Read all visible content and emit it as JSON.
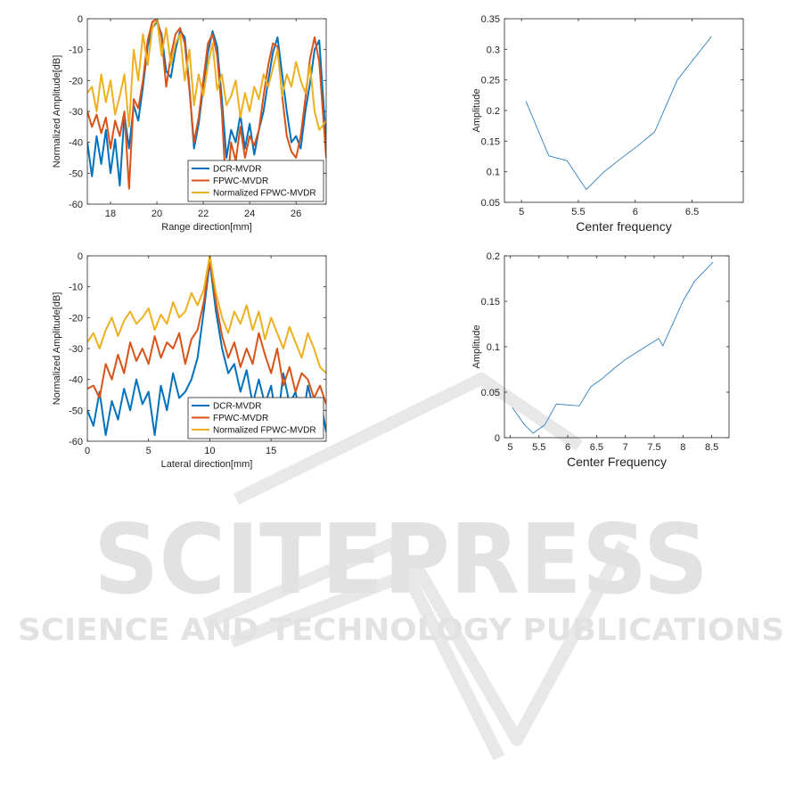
{
  "watermark": {
    "line1": "SCITEPRESS",
    "line2": "SCIENCE AND TECHNOLOGY PUBLICATIONS"
  },
  "colors": {
    "blue": "#0072BD",
    "red": "#D95319",
    "yellow": "#EDB120",
    "thin": "#2f7fc1"
  },
  "chart_data": [
    {
      "id": "range",
      "type": "line",
      "xlabel": "Range direction[mm]",
      "ylabel": "Normalized Amplitude[dB]",
      "xlim": [
        17,
        27.3
      ],
      "ylim": [
        -60,
        0
      ],
      "xticks": [
        18,
        20,
        22,
        24,
        26
      ],
      "yticks": [
        0,
        -10,
        -20,
        -30,
        -40,
        -50,
        -60
      ],
      "legend": "bottom-right",
      "series": [
        {
          "name": "DCR-MVDR",
          "color": "#0072BD",
          "x": [
            17.0,
            17.2,
            17.4,
            17.6,
            17.8,
            18.0,
            18.2,
            18.4,
            18.6,
            18.8,
            19.0,
            19.2,
            19.4,
            19.6,
            19.8,
            20.0,
            20.2,
            20.4,
            20.6,
            20.8,
            21.0,
            21.2,
            21.4,
            21.6,
            21.8,
            22.0,
            22.2,
            22.4,
            22.6,
            22.8,
            23.0,
            23.2,
            23.4,
            23.6,
            23.8,
            24.0,
            24.2,
            24.4,
            24.6,
            24.8,
            25.0,
            25.2,
            25.4,
            25.6,
            25.8,
            26.0,
            26.2,
            26.4,
            26.6,
            26.8,
            27.0,
            27.3
          ],
          "y": [
            -40,
            -51,
            -38,
            -47,
            -36,
            -50,
            -39,
            -54,
            -31,
            -42,
            -28,
            -33,
            -22,
            -9,
            -3,
            -1,
            -5,
            -17,
            -19,
            -10,
            -4,
            -6,
            -22,
            -42,
            -34,
            -22,
            -11,
            -4,
            -9,
            -26,
            -45,
            -36,
            -40,
            -31,
            -42,
            -34,
            -44,
            -36,
            -30,
            -20,
            -11,
            -6,
            -18,
            -30,
            -40,
            -38,
            -42,
            -30,
            -21,
            -10,
            -7,
            -40
          ]
        },
        {
          "name": "FPWC-MVDR",
          "color": "#D95319",
          "x": [
            17.0,
            17.2,
            17.4,
            17.6,
            17.8,
            18.0,
            18.2,
            18.4,
            18.6,
            18.8,
            19.0,
            19.2,
            19.4,
            19.6,
            19.8,
            20.0,
            20.2,
            20.4,
            20.6,
            20.8,
            21.0,
            21.2,
            21.4,
            21.6,
            21.8,
            22.0,
            22.2,
            22.4,
            22.6,
            22.8,
            23.0,
            23.2,
            23.4,
            23.6,
            23.8,
            24.0,
            24.2,
            24.4,
            24.6,
            24.8,
            25.0,
            25.2,
            25.4,
            25.6,
            25.8,
            26.0,
            26.2,
            26.4,
            26.6,
            26.8,
            27.0,
            27.3
          ],
          "y": [
            -30,
            -35,
            -31,
            -37,
            -32,
            -42,
            -33,
            -38,
            -30,
            -55,
            -26,
            -29,
            -20,
            -7,
            -1,
            0,
            -6,
            -22,
            -12,
            -5,
            -3,
            -8,
            -23,
            -40,
            -32,
            -20,
            -8,
            -5,
            -12,
            -30,
            -58,
            -40,
            -46,
            -35,
            -45,
            -38,
            -41,
            -36,
            -25,
            -15,
            -8,
            -9,
            -25,
            -38,
            -43,
            -45,
            -38,
            -26,
            -13,
            -6,
            -14,
            -45
          ]
        },
        {
          "name": "Normalized FPWC-MVDR",
          "color": "#EDB120",
          "x": [
            17.0,
            17.2,
            17.4,
            17.6,
            17.8,
            18.0,
            18.2,
            18.4,
            18.6,
            18.8,
            19.0,
            19.2,
            19.4,
            19.6,
            19.8,
            20.0,
            20.2,
            20.4,
            20.6,
            20.8,
            21.0,
            21.2,
            21.4,
            21.6,
            21.8,
            22.0,
            22.2,
            22.4,
            22.6,
            22.8,
            23.0,
            23.2,
            23.4,
            23.6,
            23.8,
            24.0,
            24.2,
            24.4,
            24.6,
            24.8,
            25.0,
            25.2,
            25.4,
            25.6,
            25.8,
            26.0,
            26.2,
            26.4,
            26.6,
            26.8,
            27.0,
            27.3
          ],
          "y": [
            -24,
            -22,
            -30,
            -18,
            -27,
            -20,
            -31,
            -25,
            -18,
            -35,
            -10,
            -20,
            -5,
            -15,
            -3,
            0,
            -12,
            -3,
            -15,
            -8,
            -5,
            -20,
            -10,
            -28,
            -18,
            -25,
            -15,
            -8,
            -23,
            -18,
            -28,
            -25,
            -20,
            -32,
            -24,
            -30,
            -22,
            -26,
            -18,
            -22,
            -16,
            -10,
            -25,
            -18,
            -22,
            -14,
            -20,
            -24,
            -15,
            -30,
            -36,
            -33
          ]
        }
      ]
    },
    {
      "id": "lateral",
      "type": "line",
      "xlabel": "Lateral direction[mm]",
      "ylabel": "Normalized Amplitude[dB]",
      "xlim": [
        0,
        19.5
      ],
      "ylim": [
        -60,
        0
      ],
      "xticks": [
        0,
        5,
        10,
        15
      ],
      "yticks": [
        0,
        -10,
        -20,
        -30,
        -40,
        -50,
        -60
      ],
      "legend": "bottom-right",
      "series": [
        {
          "name": "DCR-MVDR",
          "color": "#0072BD",
          "x": [
            0,
            0.5,
            1,
            1.5,
            2,
            2.5,
            3,
            3.5,
            4,
            4.5,
            5,
            5.5,
            6,
            6.5,
            7,
            7.5,
            8,
            8.5,
            9,
            9.5,
            10,
            10.5,
            11,
            11.5,
            12,
            12.5,
            13,
            13.5,
            14,
            14.5,
            15,
            15.5,
            16,
            16.5,
            17,
            17.5,
            18,
            18.5,
            19,
            19.5
          ],
          "y": [
            -50,
            -55,
            -44,
            -58,
            -47,
            -53,
            -43,
            -50,
            -40,
            -48,
            -44,
            -58,
            -42,
            -50,
            -38,
            -46,
            -44,
            -40,
            -33,
            -18,
            -2,
            -18,
            -30,
            -38,
            -35,
            -44,
            -37,
            -48,
            -40,
            -48,
            -42,
            -55,
            -38,
            -48,
            -44,
            -55,
            -42,
            -50,
            -46,
            -57
          ]
        },
        {
          "name": "FPWC-MVDR",
          "color": "#D95319",
          "x": [
            0,
            0.5,
            1,
            1.5,
            2,
            2.5,
            3,
            3.5,
            4,
            4.5,
            5,
            5.5,
            6,
            6.5,
            7,
            7.5,
            8,
            8.5,
            9,
            9.5,
            10,
            10.5,
            11,
            11.5,
            12,
            12.5,
            13,
            13.5,
            14,
            14.5,
            15,
            15.5,
            16,
            16.5,
            17,
            17.5,
            18,
            18.5,
            19,
            19.5
          ],
          "y": [
            -43,
            -42,
            -46,
            -35,
            -40,
            -32,
            -38,
            -28,
            -34,
            -30,
            -35,
            -26,
            -33,
            -28,
            -30,
            -25,
            -35,
            -27,
            -24,
            -15,
            -1,
            -15,
            -26,
            -33,
            -28,
            -36,
            -30,
            -35,
            -25,
            -32,
            -38,
            -30,
            -42,
            -36,
            -44,
            -38,
            -40,
            -46,
            -42,
            -48
          ]
        },
        {
          "name": "Normalized FPWC-MVDR",
          "color": "#EDB120",
          "x": [
            0,
            0.5,
            1,
            1.5,
            2,
            2.5,
            3,
            3.5,
            4,
            4.5,
            5,
            5.5,
            6,
            6.5,
            7,
            7.5,
            8,
            8.5,
            9,
            9.5,
            10,
            10.5,
            11,
            11.5,
            12,
            12.5,
            13,
            13.5,
            14,
            14.5,
            15,
            15.5,
            16,
            16.5,
            17,
            17.5,
            18,
            18.5,
            19,
            19.5
          ],
          "y": [
            -28,
            -25,
            -30,
            -24,
            -20,
            -26,
            -21,
            -18,
            -22,
            -20,
            -17,
            -24,
            -19,
            -22,
            -15,
            -20,
            -18,
            -12,
            -16,
            -11,
            0,
            -12,
            -20,
            -25,
            -18,
            -22,
            -16,
            -24,
            -18,
            -27,
            -20,
            -25,
            -30,
            -23,
            -28,
            -33,
            -25,
            -30,
            -36,
            -38
          ]
        }
      ]
    },
    {
      "id": "center-freq-1",
      "type": "line",
      "xlabel": "Center frequency",
      "ylabel": "Amplitude",
      "xlim": [
        4.85,
        6.95
      ],
      "ylim": [
        0.05,
        0.35
      ],
      "xticks": [
        5,
        5.5,
        6,
        6.5
      ],
      "yticks": [
        0.05,
        0.1,
        0.15,
        0.2,
        0.25,
        0.3,
        0.35
      ],
      "series": [
        {
          "color": "#2f7fc1",
          "x": [
            5.04,
            5.24,
            5.4,
            5.57,
            5.72,
            5.87,
            6.02,
            6.17,
            6.37,
            6.67
          ],
          "y": [
            0.215,
            0.126,
            0.118,
            0.071,
            0.099,
            0.121,
            0.142,
            0.165,
            0.25,
            0.321
          ]
        }
      ]
    },
    {
      "id": "center-freq-2",
      "type": "line",
      "xlabel": "Center Frequency",
      "ylabel": "Amplitude",
      "xlim": [
        4.9,
        8.8
      ],
      "ylim": [
        0,
        0.2
      ],
      "xticks": [
        5,
        5.5,
        6,
        6.5,
        7,
        7.5,
        8,
        8.5
      ],
      "yticks": [
        0,
        0.05,
        0.1,
        0.15,
        0.2
      ],
      "series": [
        {
          "color": "#2f7fc1",
          "x": [
            5.04,
            5.25,
            5.4,
            5.6,
            5.8,
            6.0,
            6.2,
            6.4,
            6.6,
            6.8,
            7.0,
            7.2,
            7.4,
            7.58,
            7.65,
            7.8,
            8.0,
            8.2,
            8.4,
            8.52
          ],
          "y": [
            0.033,
            0.014,
            0.005,
            0.014,
            0.037,
            0.036,
            0.035,
            0.056,
            0.065,
            0.076,
            0.086,
            0.094,
            0.102,
            0.109,
            0.101,
            0.122,
            0.15,
            0.172,
            0.185,
            0.193
          ]
        }
      ]
    }
  ]
}
